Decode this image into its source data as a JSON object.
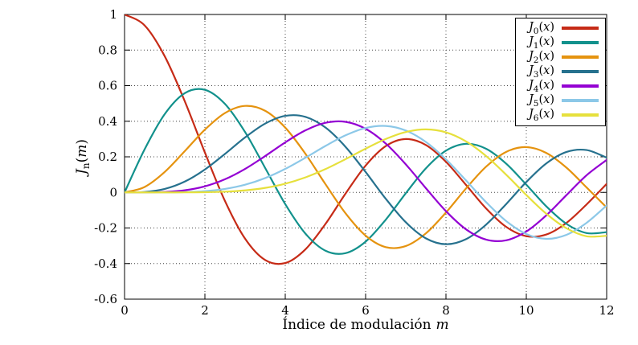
{
  "figure": {
    "background": "#ffffff",
    "xlabel": {
      "text": "Índice de modulación",
      "var": "m"
    },
    "ylabel": {
      "base": "J",
      "sub": "n",
      "open": "(",
      "var": "m",
      "close": ")"
    }
  },
  "chart_data": {
    "type": "line",
    "title": "",
    "xlabel": "Índice de modulación m",
    "ylabel": "J_n(m)",
    "xlim": [
      0,
      12
    ],
    "ylim": [
      -0.6,
      1.0
    ],
    "xticks": [
      0,
      2,
      4,
      6,
      8,
      10,
      12
    ],
    "xtick_labels": [
      "0",
      "2",
      "4",
      "6",
      "8",
      "10",
      "12"
    ],
    "yticks": [
      -0.6,
      -0.4,
      -0.2,
      0,
      0.2,
      0.4,
      0.6,
      0.8,
      1
    ],
    "ytick_labels": [
      "-0.6",
      "-0.4",
      "-0.2",
      "0",
      "0.2",
      "0.4",
      "0.6",
      "0.8",
      "1"
    ],
    "grid": "dotted",
    "grid_color": "#444444",
    "legend_position": "top-right",
    "x": [
      0,
      0.5,
      1,
      1.5,
      2,
      2.5,
      3,
      3.5,
      4,
      4.5,
      5,
      5.5,
      6,
      6.5,
      7,
      7.5,
      8,
      8.5,
      9,
      9.5,
      10,
      10.5,
      11,
      11.5,
      12
    ],
    "series": [
      {
        "label": {
          "base": "J",
          "sub": "0",
          "open": "(",
          "var": "x",
          "close": ")"
        },
        "color": "#c62b17",
        "values": [
          1.0,
          0.9385,
          0.7652,
          0.5118,
          0.2239,
          -0.0484,
          -0.2601,
          -0.3801,
          -0.3971,
          -0.3205,
          -0.1776,
          -0.0068,
          0.1506,
          0.2601,
          0.3001,
          0.2663,
          0.1717,
          0.0419,
          -0.0903,
          -0.1939,
          -0.2459,
          -0.2366,
          -0.1712,
          -0.0677,
          0.0477
        ]
      },
      {
        "label": {
          "base": "J",
          "sub": "1",
          "open": "(",
          "var": "x",
          "close": ")"
        },
        "color": "#12918c",
        "values": [
          0,
          0.2423,
          0.4401,
          0.5579,
          0.5767,
          0.4971,
          0.3391,
          0.1374,
          -0.066,
          -0.2311,
          -0.3276,
          -0.3414,
          -0.2767,
          -0.1538,
          -0.0047,
          0.1352,
          0.2346,
          0.2731,
          0.2453,
          0.1613,
          0.0435,
          -0.0789,
          -0.1768,
          -0.2284,
          -0.2234
        ]
      },
      {
        "label": {
          "base": "J",
          "sub": "2",
          "open": "(",
          "var": "x",
          "close": ")"
        },
        "color": "#e5930f",
        "values": [
          0,
          0.0306,
          0.1149,
          0.2321,
          0.3528,
          0.4461,
          0.4861,
          0.4586,
          0.3641,
          0.2178,
          0.0466,
          -0.1173,
          -0.2429,
          -0.3074,
          -0.3014,
          -0.2303,
          -0.113,
          0.0223,
          0.1448,
          0.2279,
          0.2546,
          0.2216,
          0.139,
          0.0279,
          -0.0849
        ]
      },
      {
        "label": {
          "base": "J",
          "sub": "3",
          "open": "(",
          "var": "x",
          "close": ")"
        },
        "color": "#26718e",
        "values": [
          0,
          0.0026,
          0.0196,
          0.061,
          0.1289,
          0.2166,
          0.3091,
          0.3868,
          0.4302,
          0.4247,
          0.3648,
          0.2561,
          0.1148,
          -0.0353,
          -0.1676,
          -0.2581,
          -0.2911,
          -0.2626,
          -0.1809,
          -0.0653,
          0.0584,
          0.1633,
          0.2273,
          0.2381,
          0.1951
        ]
      },
      {
        "label": {
          "base": "J",
          "sub": "4",
          "open": "(",
          "var": "x",
          "close": ")"
        },
        "color": "#9400d3",
        "values": [
          0,
          0.0002,
          0.0025,
          0.0118,
          0.034,
          0.0738,
          0.132,
          0.2044,
          0.2811,
          0.3484,
          0.3912,
          0.3967,
          0.3576,
          0.2748,
          0.1578,
          0.0238,
          -0.1054,
          -0.2077,
          -0.2655,
          -0.2691,
          -0.2196,
          -0.1283,
          -0.015,
          0.0963,
          0.1825
        ]
      },
      {
        "label": {
          "base": "J",
          "sub": "5",
          "open": "(",
          "var": "x",
          "close": ")"
        },
        "color": "#8cc8e8",
        "values": [
          0,
          0.0,
          0.0002,
          0.0018,
          0.007,
          0.0195,
          0.043,
          0.0804,
          0.1321,
          0.1947,
          0.2611,
          0.3209,
          0.3621,
          0.3736,
          0.3479,
          0.2835,
          0.1858,
          0.0671,
          -0.055,
          -0.1613,
          -0.2341,
          -0.2611,
          -0.2383,
          -0.1711,
          -0.0735
        ]
      },
      {
        "label": {
          "base": "J",
          "sub": "6",
          "open": "(",
          "var": "x",
          "close": ")"
        },
        "color": "#e6e03c",
        "values": [
          0,
          0.0,
          0.0,
          0.0002,
          0.0012,
          0.0042,
          0.0114,
          0.0254,
          0.0491,
          0.0843,
          0.131,
          0.1868,
          0.2458,
          0.2999,
          0.3392,
          0.3541,
          0.3376,
          0.2867,
          0.2043,
          0.0993,
          -0.0145,
          -0.1203,
          -0.2016,
          -0.2464,
          -0.2437
        ]
      }
    ]
  }
}
